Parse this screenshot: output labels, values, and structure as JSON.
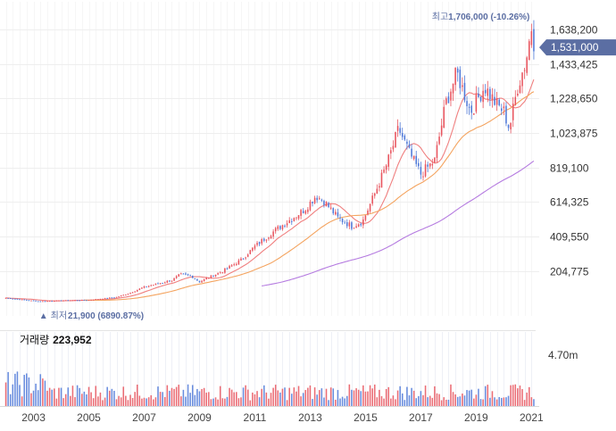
{
  "chart_data": {
    "type": "candlestick",
    "x_ticks": [
      "2003",
      "2005",
      "2007",
      "2009",
      "2011",
      "2013",
      "2015",
      "2017",
      "2019",
      "2021"
    ],
    "y_ticks": [
      "1,638,200",
      "1,433,425",
      "1,228,650",
      "1,023,875",
      "819,100",
      "614,325",
      "409,550",
      "204,775"
    ],
    "y_tick_values": [
      1638200,
      1433425,
      1228650,
      1023875,
      819100,
      614325,
      409550,
      204775
    ],
    "ylim": [
      -30000,
      1770000
    ],
    "x_range": [
      2001.95,
      2021.15
    ],
    "current_price": {
      "label": "1,531,000",
      "value": 1531000
    },
    "high_annotation": {
      "prefix": "최고",
      "value": "1,706,000 (-10.26%)",
      "price": 1706000,
      "year": 2021.0
    },
    "low_annotation": {
      "marker": "▲",
      "prefix": "최저",
      "value": "21,900 (6890.87%)",
      "price": 21900,
      "year": 2003.2
    },
    "price_anchors": [
      [
        2002.0,
        45000
      ],
      [
        2003.2,
        25000
      ],
      [
        2004.0,
        30000
      ],
      [
        2005.0,
        33000
      ],
      [
        2006.0,
        50000
      ],
      [
        2006.5,
        75000
      ],
      [
        2007.0,
        110000
      ],
      [
        2007.5,
        130000
      ],
      [
        2008.0,
        150000
      ],
      [
        2008.3,
        185000
      ],
      [
        2008.7,
        175000
      ],
      [
        2009.0,
        140000
      ],
      [
        2009.3,
        165000
      ],
      [
        2009.8,
        200000
      ],
      [
        2010.5,
        270000
      ],
      [
        2011.0,
        350000
      ],
      [
        2011.6,
        430000
      ],
      [
        2012.2,
        500000
      ],
      [
        2012.8,
        570000
      ],
      [
        2013.2,
        650000
      ],
      [
        2013.5,
        620000
      ],
      [
        2014.0,
        520000
      ],
      [
        2014.5,
        470000
      ],
      [
        2014.9,
        500000
      ],
      [
        2015.3,
        650000
      ],
      [
        2015.8,
        850000
      ],
      [
        2016.2,
        1050000
      ],
      [
        2016.6,
        900000
      ],
      [
        2017.0,
        780000
      ],
      [
        2017.5,
        860000
      ],
      [
        2017.9,
        1200000
      ],
      [
        2018.3,
        1380000
      ],
      [
        2018.8,
        1150000
      ],
      [
        2019.3,
        1300000
      ],
      [
        2019.7,
        1200000
      ],
      [
        2020.0,
        1150000
      ],
      [
        2020.2,
        1050000
      ],
      [
        2020.5,
        1300000
      ],
      [
        2020.8,
        1450000
      ],
      [
        2021.0,
        1650000
      ],
      [
        2021.12,
        1531000
      ]
    ],
    "moving_averages": [
      {
        "color": "#f08080",
        "start_year": 2002.0
      },
      {
        "color": "#f4a460",
        "start_year": 2004.8
      },
      {
        "color": "#b57be0",
        "start_year": 2011.2
      }
    ],
    "volume": {
      "label": "거래량",
      "value": "223,952",
      "tick": "4.70m",
      "tick_value": 4700000,
      "ylim": [
        0,
        7800000
      ]
    },
    "colors": {
      "up": "#e8535d",
      "down": "#4f79d8",
      "badge": "#5b6ea3",
      "annotation": "#5b6ea3",
      "grid": "#eeeeee"
    }
  }
}
